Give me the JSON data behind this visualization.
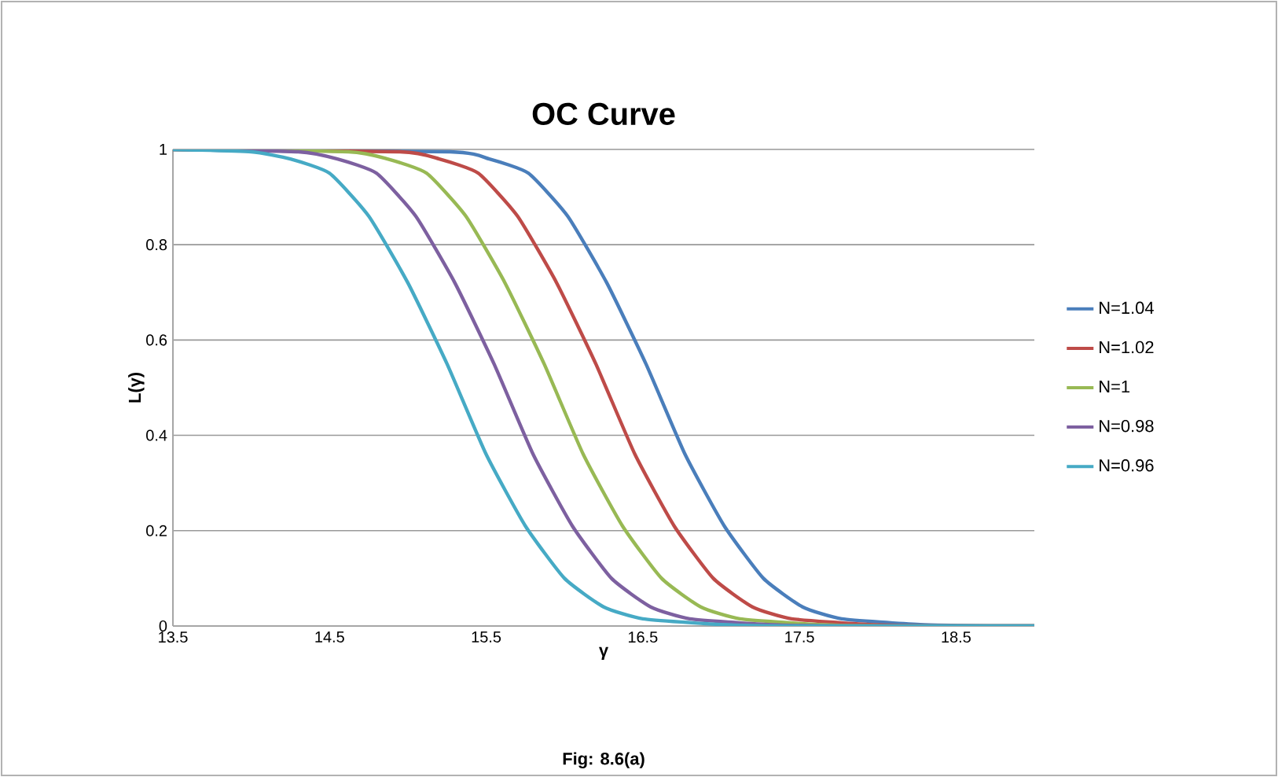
{
  "chart_data": {
    "type": "line",
    "title": "OC Curve",
    "xlabel": "γ",
    "ylabel": "L(γ)",
    "annotations": [
      "Fig: 8.6(a)"
    ],
    "xlim": [
      13.5,
      19
    ],
    "xticks": [
      13.5,
      14.5,
      15.5,
      16.5,
      17.5,
      18.5
    ],
    "ylim": [
      0,
      1
    ],
    "yticks": [
      0,
      0.2,
      0.4,
      0.6,
      0.8,
      1
    ],
    "grid": "y",
    "legend": "right",
    "marker": "none",
    "line_style": "solid",
    "series": [
      {
        "name": "N=1.04",
        "color": "#4a7ebb",
        "x": [
          13.5,
          15.27,
          15.52,
          15.77,
          16.02,
          16.27,
          16.52,
          16.77,
          17.02,
          17.27,
          17.52,
          17.77,
          18.27,
          18.77,
          19
        ],
        "values": [
          1,
          0.995,
          0.98,
          0.95,
          0.86,
          0.72,
          0.55,
          0.36,
          0.21,
          0.1,
          0.04,
          0.015,
          0.003,
          0,
          0
        ]
      },
      {
        "name": "N=1.02",
        "color": "#be4b48",
        "x": [
          13.5,
          14.95,
          15.2,
          15.45,
          15.7,
          15.95,
          16.2,
          16.45,
          16.7,
          16.95,
          17.2,
          17.45,
          17.95,
          18.45,
          19
        ],
        "values": [
          1,
          0.995,
          0.98,
          0.95,
          0.86,
          0.72,
          0.55,
          0.36,
          0.21,
          0.1,
          0.04,
          0.015,
          0.003,
          0,
          0
        ]
      },
      {
        "name": "N=1",
        "color": "#98b954",
        "x": [
          13.5,
          14.62,
          14.87,
          15.12,
          15.37,
          15.62,
          15.87,
          16.12,
          16.37,
          16.62,
          16.87,
          17.12,
          17.62,
          18.12,
          19
        ],
        "values": [
          1,
          0.995,
          0.98,
          0.95,
          0.86,
          0.72,
          0.55,
          0.36,
          0.21,
          0.1,
          0.04,
          0.015,
          0.003,
          0,
          0
        ]
      },
      {
        "name": "N=0.98",
        "color": "#7d60a0",
        "x": [
          13.5,
          14.3,
          14.55,
          14.8,
          15.05,
          15.3,
          15.55,
          15.8,
          16.05,
          16.3,
          16.55,
          16.8,
          17.3,
          17.8,
          19
        ],
        "values": [
          1,
          0.995,
          0.98,
          0.95,
          0.86,
          0.72,
          0.55,
          0.36,
          0.21,
          0.1,
          0.04,
          0.015,
          0.003,
          0,
          0
        ]
      },
      {
        "name": "N=0.96",
        "color": "#46aac5",
        "x": [
          13.5,
          14,
          14.25,
          14.5,
          14.75,
          15,
          15.25,
          15.5,
          15.75,
          16,
          16.25,
          16.5,
          17,
          17.5,
          19
        ],
        "values": [
          1,
          0.995,
          0.98,
          0.95,
          0.86,
          0.72,
          0.55,
          0.36,
          0.21,
          0.1,
          0.04,
          0.015,
          0.003,
          0,
          0
        ]
      }
    ]
  }
}
